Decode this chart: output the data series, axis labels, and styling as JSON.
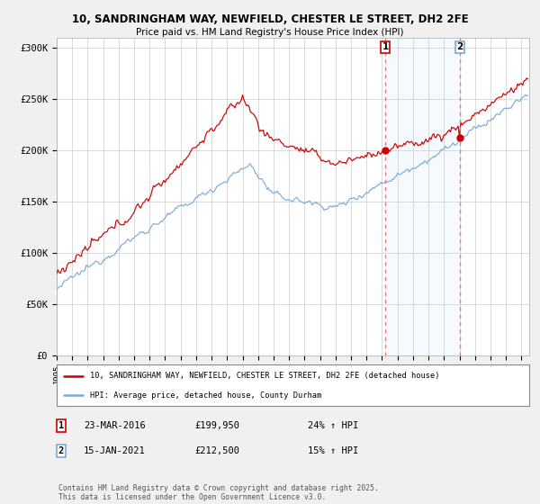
{
  "title1": "10, SANDRINGHAM WAY, NEWFIELD, CHESTER LE STREET, DH2 2FE",
  "title2": "Price paid vs. HM Land Registry's House Price Index (HPI)",
  "ylim": [
    0,
    310000
  ],
  "yticks": [
    0,
    50000,
    100000,
    150000,
    200000,
    250000,
    300000
  ],
  "ytick_labels": [
    "£0",
    "£50K",
    "£100K",
    "£150K",
    "£200K",
    "£250K",
    "£300K"
  ],
  "bg_color": "#f0f0f0",
  "plot_bg_color": "#ffffff",
  "red_color": "#cc0000",
  "blue_color": "#7aacda",
  "dashed_color": "#e87070",
  "shade_color": "#ddeeff",
  "transaction1_year": 2016.21,
  "transaction1_price": 199950,
  "transaction1_date": "23-MAR-2016",
  "transaction1_hpi": "24% ↑ HPI",
  "transaction2_year": 2021.04,
  "transaction2_price": 212500,
  "transaction2_date": "15-JAN-2021",
  "transaction2_hpi": "15% ↑ HPI",
  "footer": "Contains HM Land Registry data © Crown copyright and database right 2025.\nThis data is licensed under the Open Government Licence v3.0.",
  "legend1": "10, SANDRINGHAM WAY, NEWFIELD, CHESTER LE STREET, DH2 2FE (detached house)",
  "legend2": "HPI: Average price, detached house, County Durham"
}
